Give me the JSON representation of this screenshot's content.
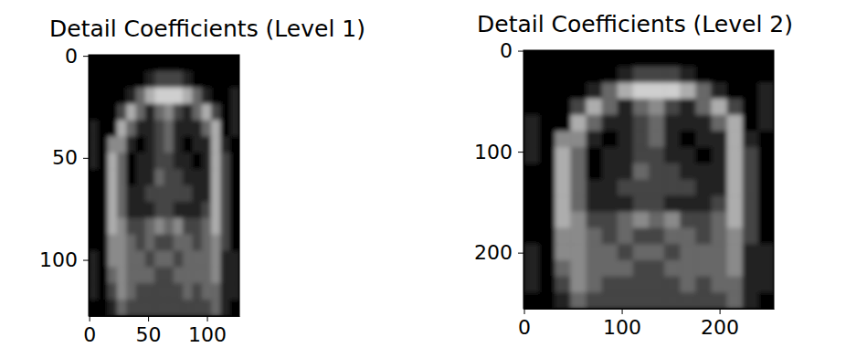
{
  "chart_data": [
    {
      "type": "heatmap",
      "title": "Detail Coefficients (Level 1)",
      "xlim": [
        -0.5,
        127.5
      ],
      "ylim": [
        127.5,
        -0.5
      ],
      "xticks": [
        0,
        50,
        100
      ],
      "yticks": [
        0,
        50,
        100
      ],
      "cells": [
        [
          0,
          0,
          0,
          0,
          0,
          0,
          0,
          0,
          0,
          0,
          0,
          0,
          0,
          0,
          0,
          0
        ],
        [
          0,
          0,
          0,
          0,
          0,
          0,
          1,
          2,
          2,
          2,
          1,
          0,
          0,
          0,
          0,
          0
        ],
        [
          0,
          0,
          0,
          0,
          1,
          3,
          5,
          6,
          6,
          6,
          5,
          3,
          1,
          0,
          0,
          1
        ],
        [
          0,
          0,
          0,
          2,
          5,
          3,
          1,
          3,
          4,
          2,
          1,
          3,
          5,
          2,
          0,
          1
        ],
        [
          1,
          0,
          0,
          5,
          3,
          1,
          1,
          2,
          3,
          1,
          1,
          1,
          3,
          5,
          0,
          1
        ],
        [
          1,
          0,
          4,
          4,
          1,
          0,
          1,
          2,
          3,
          1,
          0,
          1,
          1,
          5,
          1,
          0
        ],
        [
          1,
          0,
          5,
          3,
          0,
          1,
          1,
          2,
          2,
          1,
          1,
          0,
          1,
          5,
          2,
          0
        ],
        [
          0,
          0,
          5,
          3,
          0,
          1,
          1,
          3,
          2,
          2,
          1,
          1,
          1,
          5,
          2,
          0
        ],
        [
          0,
          0,
          5,
          3,
          1,
          1,
          2,
          2,
          2,
          2,
          2,
          1,
          1,
          5,
          2,
          0
        ],
        [
          0,
          0,
          5,
          3,
          1,
          1,
          1,
          2,
          2,
          1,
          1,
          1,
          2,
          5,
          2,
          0
        ],
        [
          0,
          0,
          5,
          4,
          2,
          2,
          3,
          4,
          3,
          4,
          2,
          2,
          3,
          5,
          2,
          0
        ],
        [
          0,
          0,
          4,
          4,
          3,
          2,
          3,
          2,
          2,
          3,
          3,
          2,
          3,
          4,
          2,
          0
        ],
        [
          1,
          0,
          4,
          4,
          3,
          3,
          2,
          3,
          3,
          2,
          3,
          3,
          3,
          4,
          1,
          1
        ],
        [
          1,
          0,
          3,
          4,
          3,
          3,
          3,
          2,
          2,
          3,
          3,
          3,
          3,
          4,
          1,
          1
        ],
        [
          1,
          0,
          2,
          4,
          3,
          2,
          2,
          2,
          2,
          2,
          3,
          2,
          3,
          3,
          1,
          1
        ],
        [
          0,
          0,
          1,
          3,
          2,
          2,
          2,
          2,
          2,
          2,
          2,
          2,
          2,
          3,
          1,
          0
        ]
      ]
    },
    {
      "type": "heatmap",
      "title": "Detail Coefficients (Level 2)",
      "xlim": [
        -0.5,
        255.5
      ],
      "ylim": [
        255.5,
        -0.5
      ],
      "xticks": [
        0,
        100,
        200
      ],
      "yticks": [
        0,
        100,
        200
      ],
      "cells": [
        [
          0,
          0,
          0,
          0,
          0,
          0,
          0,
          0,
          0,
          0,
          0,
          0,
          0,
          0,
          0,
          0
        ],
        [
          0,
          0,
          0,
          0,
          0,
          0,
          1,
          2,
          2,
          2,
          1,
          0,
          0,
          0,
          0,
          0
        ],
        [
          0,
          0,
          0,
          0,
          1,
          3,
          5,
          6,
          6,
          6,
          5,
          3,
          1,
          0,
          0,
          1
        ],
        [
          0,
          0,
          0,
          2,
          5,
          3,
          1,
          3,
          4,
          2,
          1,
          3,
          5,
          2,
          0,
          1
        ],
        [
          1,
          0,
          0,
          5,
          3,
          1,
          1,
          2,
          3,
          1,
          1,
          1,
          3,
          5,
          0,
          1
        ],
        [
          1,
          0,
          4,
          4,
          1,
          0,
          1,
          2,
          3,
          1,
          0,
          1,
          1,
          5,
          1,
          0
        ],
        [
          1,
          0,
          5,
          3,
          0,
          1,
          1,
          2,
          2,
          1,
          1,
          0,
          1,
          5,
          2,
          0
        ],
        [
          0,
          0,
          5,
          3,
          0,
          1,
          1,
          3,
          2,
          2,
          1,
          1,
          1,
          5,
          2,
          0
        ],
        [
          0,
          0,
          5,
          3,
          1,
          1,
          2,
          2,
          2,
          2,
          2,
          1,
          1,
          5,
          2,
          0
        ],
        [
          0,
          0,
          5,
          3,
          1,
          1,
          1,
          2,
          2,
          1,
          1,
          1,
          2,
          5,
          2,
          0
        ],
        [
          0,
          0,
          5,
          4,
          2,
          2,
          3,
          4,
          3,
          4,
          2,
          2,
          3,
          5,
          2,
          0
        ],
        [
          0,
          0,
          4,
          4,
          3,
          2,
          3,
          2,
          2,
          3,
          3,
          2,
          3,
          4,
          2,
          0
        ],
        [
          1,
          0,
          4,
          4,
          3,
          3,
          2,
          3,
          3,
          2,
          3,
          3,
          3,
          4,
          1,
          1
        ],
        [
          1,
          0,
          3,
          4,
          3,
          3,
          3,
          2,
          2,
          3,
          3,
          3,
          3,
          4,
          1,
          1
        ],
        [
          1,
          0,
          2,
          4,
          3,
          2,
          2,
          2,
          2,
          2,
          3,
          2,
          3,
          3,
          1,
          1
        ],
        [
          0,
          0,
          1,
          3,
          2,
          2,
          2,
          2,
          2,
          2,
          2,
          2,
          2,
          3,
          1,
          0
        ]
      ]
    }
  ]
}
